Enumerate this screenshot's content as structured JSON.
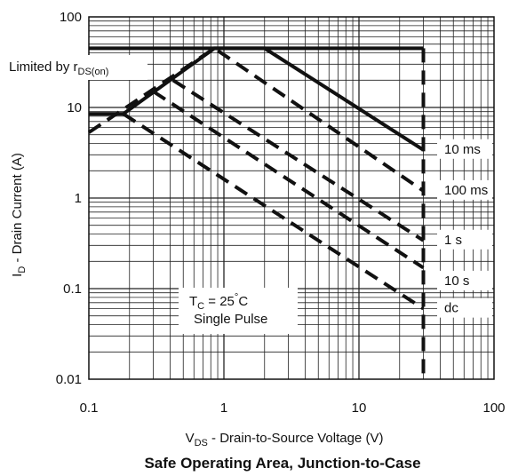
{
  "chart_data": {
    "type": "line",
    "title": "Safe Operating Area, Junction-to-Case",
    "xlabel": {
      "main": "V",
      "sub": "DS",
      "rest": " -  Drain-to-Source Voltage (V)"
    },
    "ylabel": {
      "main": "I",
      "sub": "D",
      "rest": " - Drain Current (A)"
    },
    "xscale": "log",
    "yscale": "log",
    "xlim": [
      0.1,
      100
    ],
    "ylim": [
      0.01,
      100
    ],
    "grid": true,
    "x_tick_labels": [
      "0.1",
      "1",
      "10",
      "100"
    ],
    "y_tick_labels": [
      "100",
      "10",
      "1",
      "0.1",
      "0.01"
    ],
    "limit_label": {
      "main": "Limited by r",
      "sub": "DS(on)"
    },
    "annotation": {
      "line1_main": "T",
      "line1_sub": "C",
      "line1_rest": " = 25",
      "line1_deg": "°",
      "line1_unit": "C",
      "line2": "Single Pulse"
    },
    "series": [
      {
        "name": "10 ms",
        "style": "solid",
        "x": [
          0.1,
          0.18,
          0.85,
          2.0,
          30
        ],
        "y": [
          8.5,
          8.5,
          45,
          45,
          3.4
        ]
      },
      {
        "name": "100 ms",
        "style": "dashed",
        "x": [
          0.1,
          0.85,
          30
        ],
        "y": [
          5.3,
          45,
          1.2
        ]
      },
      {
        "name": "1 s",
        "style": "dashed",
        "x": [
          0.42,
          30
        ],
        "y": [
          20,
          0.34
        ]
      },
      {
        "name": "10 s",
        "style": "dashed",
        "x": [
          0.3,
          30
        ],
        "y": [
          15,
          0.17
        ]
      },
      {
        "name": "dc",
        "style": "dashed",
        "x": [
          0.18,
          30
        ],
        "y": [
          8.5,
          0.06
        ]
      },
      {
        "name": "",
        "style": "solid",
        "x": [
          0.1,
          30
        ],
        "y": [
          45,
          45
        ]
      },
      {
        "name": "",
        "style": "dashed",
        "x": [
          30,
          30
        ],
        "y": [
          45,
          0.01
        ]
      }
    ],
    "label_anchor_y": [
      3.4,
      1.2,
      0.34,
      0.12,
      0.06
    ]
  }
}
